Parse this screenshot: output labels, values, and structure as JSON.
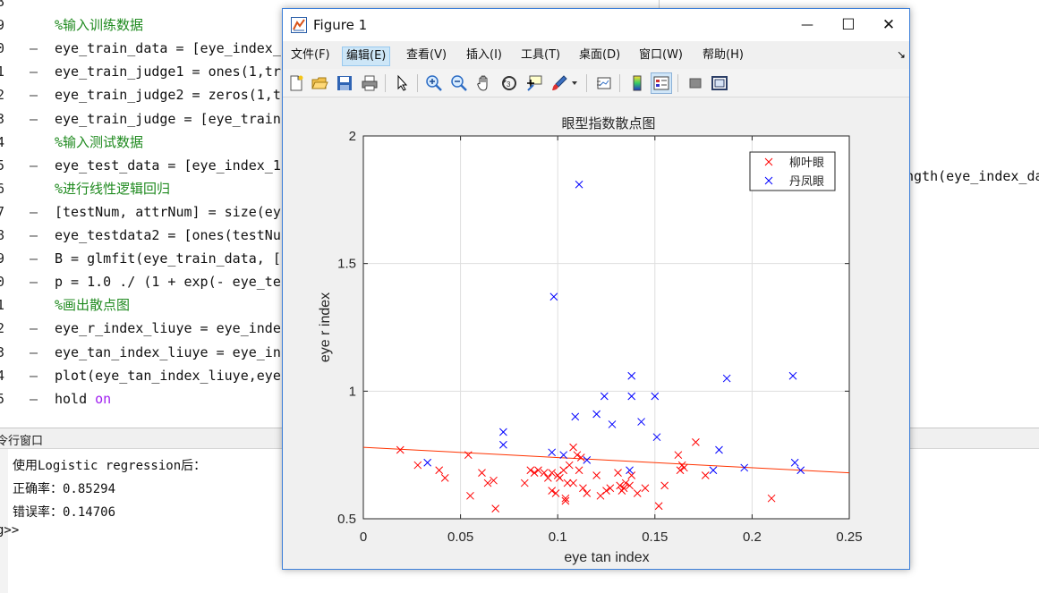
{
  "editor": {
    "lines": [
      {
        "num": "8",
        "dash": "",
        "text": "",
        "type": "code"
      },
      {
        "num": "9",
        "dash": "",
        "text": "%输入训练数据",
        "type": "comment"
      },
      {
        "num": "0",
        "dash": "—",
        "text": "eye_train_data = [eye_index_",
        "type": "code"
      },
      {
        "num": "1",
        "dash": "—",
        "text": "eye_train_judge1 = ones(1,tr",
        "type": "code"
      },
      {
        "num": "2",
        "dash": "—",
        "text": "eye_train_judge2 = zeros(1,t",
        "type": "code"
      },
      {
        "num": "3",
        "dash": "—",
        "text": "eye_train_judge = [eye_train",
        "type": "code"
      },
      {
        "num": "4",
        "dash": "",
        "text": "%输入测试数据",
        "type": "comment"
      },
      {
        "num": "5",
        "dash": "—",
        "text": "eye_test_data = [eye_index_1",
        "type": "code"
      },
      {
        "num": "6",
        "dash": "",
        "text": "%进行线性逻辑回归",
        "type": "comment"
      },
      {
        "num": "7",
        "dash": "—",
        "text": "[testNum, attrNum] = size(ey",
        "type": "code"
      },
      {
        "num": "8",
        "dash": "—",
        "text": "eye_testdata2 = [ones(testNu",
        "type": "code"
      },
      {
        "num": "9",
        "dash": "—",
        "text": "B = glmfit(eye_train_data, [",
        "type": "code"
      },
      {
        "num": "0",
        "dash": "—",
        "text": "p = 1.0 ./ (1 + exp(- eye_te",
        "type": "code"
      },
      {
        "num": "1",
        "dash": "",
        "text": "%画出散点图",
        "type": "comment"
      },
      {
        "num": "2",
        "dash": "—",
        "text": "eye_r_index_liuye = eye_inde",
        "type": "code"
      },
      {
        "num": "3",
        "dash": "—",
        "text": "eye_tan_index_liuye = eye_in",
        "type": "code"
      },
      {
        "num": "4",
        "dash": "—",
        "text": "plot(eye_tan_index_liuye,eye",
        "type": "code"
      },
      {
        "num": "5",
        "dash": "—",
        "text": "hold ",
        "kw": "on",
        "type": "code"
      }
    ],
    "right_fragment": "ngth(eye_index_da"
  },
  "command_window": {
    "title": "令行窗口",
    "lines": [
      "使用Logistic regression后：",
      "正确率：0.85294",
      "错误率：0.14706"
    ],
    "prompt": "g>>"
  },
  "figure": {
    "title": "Figure 1",
    "window_buttons": {
      "minimize": "—",
      "maximize": "☐",
      "close": "✕"
    },
    "menus": [
      "文件(F)",
      "编辑(E)",
      "查看(V)",
      "插入(I)",
      "工具(T)",
      "桌面(D)",
      "窗口(W)",
      "帮助(H)"
    ],
    "active_menu": "编辑(E)",
    "menu_dock_arrow": "↘",
    "toolbar_icons": [
      "new-figure-icon",
      "open-file-icon",
      "save-icon",
      "print-icon",
      "pointer-icon",
      "zoom-in-icon",
      "zoom-out-icon",
      "pan-hand-icon",
      "rotate-3d-icon",
      "data-cursor-icon",
      "brush-icon",
      "brush-dropdown-icon",
      "link-plot-icon",
      "colorbar-icon",
      "legend-icon",
      "hide-plot-tools-icon",
      "show-plot-tools-icon"
    ]
  },
  "chart_data": {
    "type": "scatter",
    "title": "眼型指数散点图",
    "xlabel": "eye tan index",
    "ylabel": "eye r index",
    "xlim": [
      0,
      0.25
    ],
    "ylim": [
      0.5,
      2
    ],
    "xticks": [
      "0",
      "0.05",
      "0.1",
      "0.15",
      "0.2",
      "0.25"
    ],
    "yticks": [
      "0.5",
      "1",
      "1.5",
      "2"
    ],
    "grid": true,
    "legend_position": "top-right",
    "series": [
      {
        "name": "柳叶眼",
        "color": "#ff0000",
        "marker": "x",
        "points": [
          [
            0.019,
            0.77
          ],
          [
            0.028,
            0.71
          ],
          [
            0.039,
            0.69
          ],
          [
            0.042,
            0.66
          ],
          [
            0.054,
            0.75
          ],
          [
            0.055,
            0.59
          ],
          [
            0.061,
            0.68
          ],
          [
            0.064,
            0.64
          ],
          [
            0.067,
            0.65
          ],
          [
            0.068,
            0.54
          ],
          [
            0.083,
            0.64
          ],
          [
            0.086,
            0.69
          ],
          [
            0.088,
            0.68
          ],
          [
            0.09,
            0.69
          ],
          [
            0.093,
            0.68
          ],
          [
            0.095,
            0.66
          ],
          [
            0.097,
            0.68
          ],
          [
            0.097,
            0.61
          ],
          [
            0.099,
            0.6
          ],
          [
            0.1,
            0.67
          ],
          [
            0.101,
            0.66
          ],
          [
            0.103,
            0.69
          ],
          [
            0.104,
            0.58
          ],
          [
            0.104,
            0.57
          ],
          [
            0.105,
            0.64
          ],
          [
            0.106,
            0.71
          ],
          [
            0.108,
            0.78
          ],
          [
            0.108,
            0.64
          ],
          [
            0.11,
            0.75
          ],
          [
            0.111,
            0.69
          ],
          [
            0.112,
            0.74
          ],
          [
            0.113,
            0.62
          ],
          [
            0.115,
            0.6
          ],
          [
            0.12,
            0.67
          ],
          [
            0.122,
            0.59
          ],
          [
            0.125,
            0.61
          ],
          [
            0.127,
            0.62
          ],
          [
            0.131,
            0.68
          ],
          [
            0.132,
            0.63
          ],
          [
            0.133,
            0.61
          ],
          [
            0.134,
            0.62
          ],
          [
            0.135,
            0.64
          ],
          [
            0.137,
            0.63
          ],
          [
            0.138,
            0.67
          ],
          [
            0.141,
            0.6
          ],
          [
            0.145,
            0.62
          ],
          [
            0.152,
            0.55
          ],
          [
            0.155,
            0.63
          ],
          [
            0.162,
            0.75
          ],
          [
            0.163,
            0.69
          ],
          [
            0.164,
            0.71
          ],
          [
            0.165,
            0.7
          ],
          [
            0.171,
            0.8
          ],
          [
            0.176,
            0.67
          ],
          [
            0.21,
            0.58
          ]
        ]
      },
      {
        "name": "丹凤眼",
        "color": "#0000ff",
        "marker": "x",
        "points": [
          [
            0.033,
            0.72
          ],
          [
            0.072,
            0.84
          ],
          [
            0.072,
            0.79
          ],
          [
            0.097,
            0.76
          ],
          [
            0.098,
            1.37
          ],
          [
            0.103,
            0.75
          ],
          [
            0.109,
            0.9
          ],
          [
            0.111,
            1.81
          ],
          [
            0.115,
            0.73
          ],
          [
            0.12,
            0.91
          ],
          [
            0.124,
            0.98
          ],
          [
            0.128,
            0.87
          ],
          [
            0.138,
            0.98
          ],
          [
            0.138,
            1.06
          ],
          [
            0.137,
            0.69
          ],
          [
            0.143,
            0.88
          ],
          [
            0.15,
            0.98
          ],
          [
            0.151,
            0.82
          ],
          [
            0.18,
            0.69
          ],
          [
            0.183,
            0.77
          ],
          [
            0.187,
            1.05
          ],
          [
            0.196,
            0.7
          ],
          [
            0.221,
            1.06
          ],
          [
            0.222,
            0.72
          ],
          [
            0.225,
            0.69
          ]
        ]
      }
    ],
    "lines": [
      {
        "name": "decision-boundary",
        "color": "#ff3300",
        "from": [
          0,
          0.78
        ],
        "to": [
          0.25,
          0.68
        ]
      }
    ]
  }
}
